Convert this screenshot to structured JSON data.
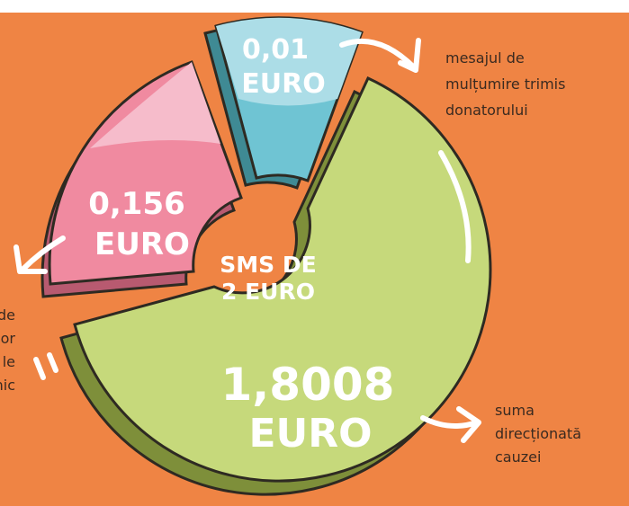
{
  "segments": {
    "blue": {
      "amount": "0,01",
      "unit": "EURO"
    },
    "pink": {
      "amount": "0,156",
      "unit": "EURO"
    },
    "green": {
      "amount": "1,8008",
      "unit": "EURO"
    }
  },
  "center": [
    "SMS DE",
    "2 EURO"
  ],
  "notes": {
    "blue": [
      "mesajul de",
      "mulțumire trimis",
      "donatorului"
    ],
    "left": [
      "de",
      "or",
      "le",
      "nic"
    ],
    "green": [
      "suma",
      "direcționată",
      "cauzei"
    ]
  }
}
